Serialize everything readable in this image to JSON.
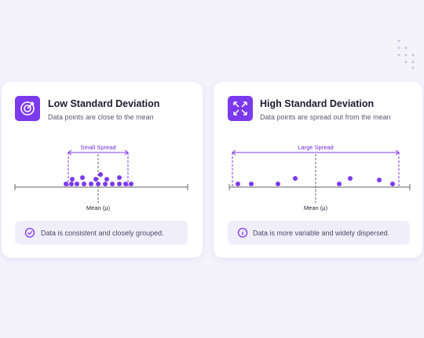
{
  "cards": [
    {
      "title": "Low Standard Deviation",
      "subtitle": "Data points are close to the mean",
      "spread_label": "Small Spread",
      "mean_label": "Mean (μ)",
      "note": "Data is consistent and closely grouped."
    },
    {
      "title": "High Standard Deviation",
      "subtitle": "Data points are spread out from the mean",
      "spread_label": "Large Spread",
      "mean_label": "Mean (μ)",
      "note": "Data is more variable and widely dispersed."
    }
  ]
}
